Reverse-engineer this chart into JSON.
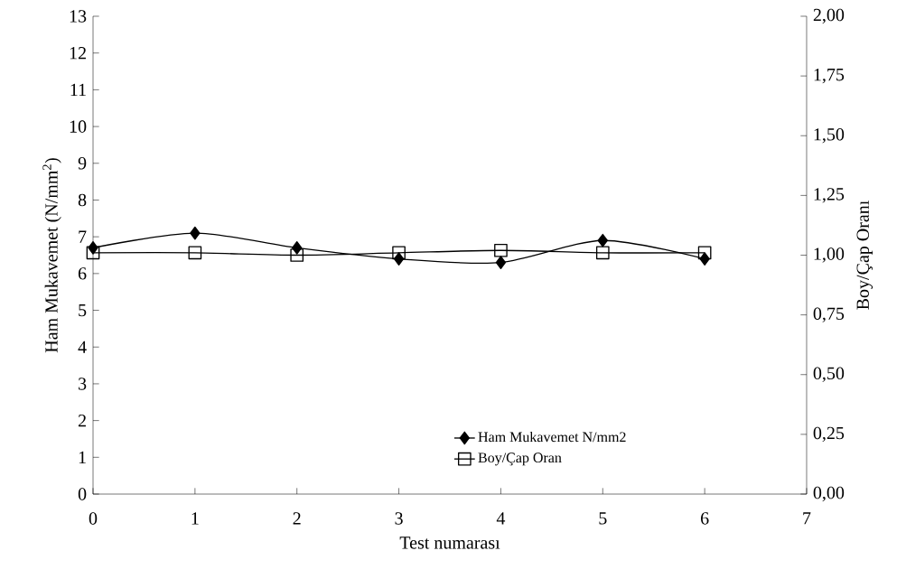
{
  "chart_data": {
    "type": "line",
    "xlabel": "Test numarası",
    "ylabel": "Ham Mukavemet (N/mm$^{2}$)",
    "y2label": "Boy/Çap Oranı",
    "x": [
      0,
      1,
      2,
      3,
      4,
      5,
      6
    ],
    "series": [
      {
        "name": "Ham Mukavemet N/mm2",
        "color": "#000000",
        "marker": "diamond",
        "values": [
          6.7,
          7.1,
          6.7,
          6.4,
          6.3,
          6.9,
          6.4
        ]
      },
      {
        "name": "Boy/Çap Oran",
        "color": "#000000",
        "marker": "square",
        "axis": "y2",
        "values": [
          1.01,
          1.01,
          1.0,
          1.01,
          1.02,
          1.01,
          1.01
        ]
      }
    ],
    "xlim": [
      0,
      7
    ],
    "xticks": [
      0,
      1,
      2,
      3,
      4,
      5,
      6,
      7
    ],
    "ylim": [
      0,
      13
    ],
    "yticks": [
      0,
      1,
      2,
      3,
      4,
      5,
      6,
      7,
      8,
      9,
      10,
      11,
      12,
      13
    ],
    "y2lim": [
      0,
      2
    ],
    "y2ticks": [
      {
        "value": 0,
        "label": "0,00"
      },
      {
        "value": 0.25,
        "label": "0,25"
      },
      {
        "value": 0.5,
        "label": "0,50"
      },
      {
        "value": 0.75,
        "label": "0,75"
      },
      {
        "value": 1,
        "label": "1,00"
      },
      {
        "value": 1.25,
        "label": "1,25"
      },
      {
        "value": 1.5,
        "label": "1,50"
      },
      {
        "value": 1.75,
        "label": "1,75"
      },
      {
        "value": 2,
        "label": "2,00"
      }
    ],
    "grid": false,
    "legend": "bottom right"
  }
}
